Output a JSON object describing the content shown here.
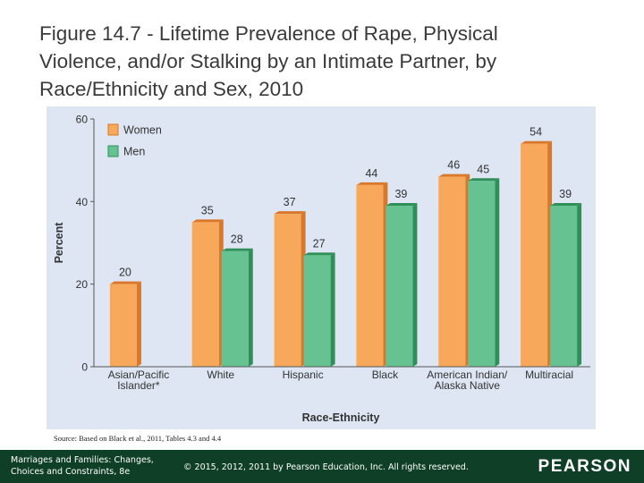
{
  "slide": {
    "title": "Figure 14.7 - Lifetime Prevalence of Rape, Physical\nViolence, and/or Stalking by an Intimate Partner, by\nRace/Ethnicity and Sex, 2010",
    "source": "Source: Based on Black et al., 2011, Tables 4.3 and 4.4"
  },
  "footer": {
    "book_line1": "Marriages and Families: Changes,",
    "book_line2": "Choices and Constraints, 8e",
    "copyright": "© 2015, 2012, 2011 by Pearson Education, Inc. All rights reserved.",
    "logo": "PEARSON"
  },
  "colors": {
    "women": "#f7a85a",
    "women_side": "#d9772a",
    "men": "#66c391",
    "men_side": "#2f8f59",
    "panel": "#dde6f2",
    "footer": "#0f3f26"
  },
  "chart_data": {
    "type": "bar",
    "title": "",
    "xlabel": "Race-Ethnicity",
    "ylabel": "Percent",
    "ylim": [
      0,
      60
    ],
    "yticks": [
      "0",
      "20",
      "40",
      "60"
    ],
    "legend_position": "top-left",
    "categories": [
      [
        "Asian/Pacific",
        "Islander*"
      ],
      [
        "White"
      ],
      [
        "Hispanic"
      ],
      [
        "Black"
      ],
      [
        "American Indian/",
        "Alaska Native"
      ],
      [
        "Multiracial"
      ]
    ],
    "series": [
      {
        "name": "Women",
        "values": [
          20,
          35,
          37,
          44,
          46,
          54
        ],
        "labels": [
          "20",
          "35",
          "37",
          "44",
          "46",
          "54"
        ]
      },
      {
        "name": "Men",
        "values": [
          null,
          28,
          27,
          39,
          45,
          39
        ],
        "labels": [
          "",
          "28",
          "27",
          "39",
          "45",
          "39"
        ]
      }
    ]
  }
}
